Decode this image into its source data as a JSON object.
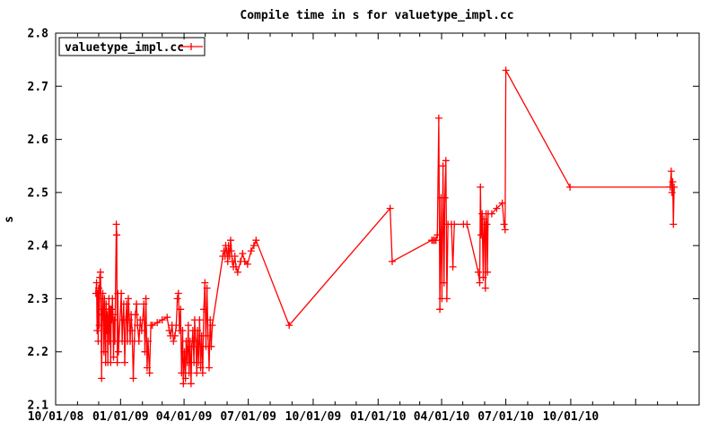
{
  "chart_data": {
    "type": "line",
    "title": "Compile time in s for valuetype_impl.cc",
    "xlabel": "",
    "ylabel": "s",
    "grid": false,
    "background_color": "#ffffff",
    "axis_color": "#000000",
    "text_color": "#000000",
    "legend": {
      "position": "top-left",
      "entries": [
        "valuetype_impl.cc"
      ]
    },
    "x_axis": {
      "unit": "days since 10/01/08",
      "range_days": [
        0,
        912
      ],
      "major_ticks": [
        {
          "day": 0,
          "label": "10/01/08"
        },
        {
          "day": 92,
          "label": "01/01/09"
        },
        {
          "day": 182,
          "label": "04/01/09"
        },
        {
          "day": 273,
          "label": "07/01/09"
        },
        {
          "day": 365,
          "label": "10/01/09"
        },
        {
          "day": 457,
          "label": "01/01/10"
        },
        {
          "day": 547,
          "label": "04/01/10"
        },
        {
          "day": 638,
          "label": "07/01/10"
        },
        {
          "day": 730,
          "label": "10/01/10"
        },
        {
          "day": 822,
          "label": ""
        }
      ],
      "minor_tick_days": [
        31,
        61,
        123,
        151,
        212,
        243,
        304,
        335,
        396,
        426,
        488,
        516,
        577,
        608,
        669,
        700,
        761,
        791,
        853,
        881
      ]
    },
    "y_axis": {
      "min": 2.1,
      "max": 2.8,
      "tick_step": 0.1,
      "tick_values": [
        2.1,
        2.2,
        2.3,
        2.4,
        2.5,
        2.6,
        2.7,
        2.8
      ]
    },
    "series": [
      {
        "name": "valuetype_impl.cc",
        "color": "#ff0000",
        "marker": "plus",
        "points": [
          [
            57,
            2.31
          ],
          [
            58,
            2.33
          ],
          [
            58.8,
            2.24
          ],
          [
            59.5,
            2.31
          ],
          [
            60.3,
            2.22
          ],
          [
            61,
            2.32
          ],
          [
            61.8,
            2.25
          ],
          [
            62.6,
            2.34
          ],
          [
            63.5,
            2.35
          ],
          [
            64.3,
            2.3
          ],
          [
            65.1,
            2.15
          ],
          [
            66,
            2.27
          ],
          [
            66.8,
            2.31
          ],
          [
            67.6,
            2.28
          ],
          [
            68.4,
            2.2
          ],
          [
            69.2,
            2.3
          ],
          [
            70,
            2.26
          ],
          [
            70.8,
            2.18
          ],
          [
            71.6,
            2.29
          ],
          [
            72.4,
            2.24
          ],
          [
            73.2,
            2.27
          ],
          [
            74,
            2.18
          ],
          [
            74.8,
            2.26
          ],
          [
            75.6,
            2.3
          ],
          [
            76.4,
            2.22
          ],
          [
            77.2,
            2.28
          ],
          [
            78,
            2.18
          ],
          [
            78.8,
            2.28
          ],
          [
            79.6,
            2.26
          ],
          [
            80.4,
            2.3
          ],
          [
            81.2,
            2.27
          ],
          [
            82,
            2.19
          ],
          [
            83,
            2.26
          ],
          [
            84,
            2.22
          ],
          [
            86,
            2.44
          ],
          [
            86.6,
            2.42
          ],
          [
            87.4,
            2.18
          ],
          [
            88.2,
            2.31
          ],
          [
            89,
            2.2
          ],
          [
            93,
            2.31
          ],
          [
            94.2,
            2.22
          ],
          [
            95.4,
            2.26
          ],
          [
            96.6,
            2.29
          ],
          [
            98,
            2.18
          ],
          [
            99.4,
            2.26
          ],
          [
            100.6,
            2.29
          ],
          [
            101.8,
            2.22
          ],
          [
            103,
            2.3
          ],
          [
            104.4,
            2.26
          ],
          [
            105.6,
            2.22
          ],
          [
            107,
            2.27
          ],
          [
            108.4,
            2.24
          ],
          [
            110,
            2.15
          ],
          [
            111.6,
            2.22
          ],
          [
            113,
            2.27
          ],
          [
            114.6,
            2.29
          ],
          [
            116,
            2.25
          ],
          [
            118,
            2.22
          ],
          [
            120,
            2.26
          ],
          [
            122,
            2.24
          ],
          [
            125,
            2.29
          ],
          [
            126.6,
            2.2
          ],
          [
            128,
            2.3
          ],
          [
            129.6,
            2.17
          ],
          [
            131,
            2.22
          ],
          [
            133,
            2.16
          ],
          [
            135,
            2.25
          ],
          [
            137,
            2.25
          ],
          [
            144,
            2.255
          ],
          [
            151,
            2.26
          ],
          [
            158,
            2.265
          ],
          [
            161,
            2.24
          ],
          [
            163,
            2.23
          ],
          [
            165,
            2.25
          ],
          [
            167,
            2.22
          ],
          [
            169,
            2.23
          ],
          [
            171,
            2.25
          ],
          [
            172.5,
            2.3
          ],
          [
            174,
            2.31
          ],
          [
            175.5,
            2.24
          ],
          [
            177,
            2.28
          ],
          [
            178.5,
            2.16
          ],
          [
            180,
            2.24
          ],
          [
            181,
            2.14
          ],
          [
            182.5,
            2.2
          ],
          [
            184,
            2.15
          ],
          [
            185,
            2.22
          ],
          [
            186.5,
            2.18
          ],
          [
            188,
            2.25
          ],
          [
            189,
            2.16
          ],
          [
            190.5,
            2.22
          ],
          [
            192,
            2.14
          ],
          [
            193,
            2.21
          ],
          [
            194.5,
            2.24
          ],
          [
            196,
            2.18
          ],
          [
            197,
            2.26
          ],
          [
            198.5,
            2.22
          ],
          [
            200,
            2.16
          ],
          [
            201,
            2.24
          ],
          [
            202.5,
            2.18
          ],
          [
            204,
            2.26
          ],
          [
            205.5,
            2.17
          ],
          [
            207,
            2.23
          ],
          [
            208.5,
            2.16
          ],
          [
            210,
            2.28
          ],
          [
            211.5,
            2.33
          ],
          [
            213,
            2.21
          ],
          [
            214.5,
            2.32
          ],
          [
            216,
            2.23
          ],
          [
            217.5,
            2.17
          ],
          [
            219,
            2.26
          ],
          [
            220.5,
            2.21
          ],
          [
            222,
            2.25
          ],
          [
            237,
            2.38
          ],
          [
            238.5,
            2.39
          ],
          [
            240,
            2.38
          ],
          [
            241,
            2.4
          ],
          [
            242.5,
            2.39
          ],
          [
            244,
            2.37
          ],
          [
            245,
            2.4
          ],
          [
            246.5,
            2.38
          ],
          [
            248,
            2.41
          ],
          [
            249,
            2.39
          ],
          [
            250.5,
            2.37
          ],
          [
            252,
            2.36
          ],
          [
            254,
            2.38
          ],
          [
            255.5,
            2.36
          ],
          [
            258,
            2.35
          ],
          [
            262,
            2.37
          ],
          [
            265,
            2.385
          ],
          [
            268,
            2.37
          ],
          [
            272,
            2.365
          ],
          [
            277,
            2.39
          ],
          [
            281,
            2.4
          ],
          [
            284,
            2.41
          ],
          [
            331,
            2.25
          ],
          [
            474,
            2.47
          ],
          [
            477,
            2.37
          ],
          [
            533,
            2.41
          ],
          [
            535,
            2.41
          ],
          [
            537,
            2.41
          ],
          [
            539,
            2.41
          ],
          [
            541,
            2.42
          ],
          [
            543,
            2.64
          ],
          [
            544.5,
            2.28
          ],
          [
            546,
            2.49
          ],
          [
            547.5,
            2.3
          ],
          [
            549,
            2.55
          ],
          [
            550.5,
            2.33
          ],
          [
            551.5,
            2.49
          ],
          [
            553,
            2.56
          ],
          [
            554.5,
            2.3
          ],
          [
            556,
            2.44
          ],
          [
            561,
            2.44
          ],
          [
            563,
            2.36
          ],
          [
            565,
            2.44
          ],
          [
            578,
            2.44
          ],
          [
            583,
            2.44
          ],
          [
            599,
            2.35
          ],
          [
            601,
            2.33
          ],
          [
            602,
            2.51
          ],
          [
            603,
            2.42
          ],
          [
            604.5,
            2.46
          ],
          [
            606,
            2.34
          ],
          [
            607,
            2.45
          ],
          [
            608,
            2.44
          ],
          [
            609,
            2.32
          ],
          [
            610,
            2.46
          ],
          [
            611,
            2.44
          ],
          [
            612,
            2.35
          ],
          [
            613,
            2.46
          ],
          [
            618,
            2.46
          ],
          [
            625,
            2.47
          ],
          [
            633,
            2.48
          ],
          [
            635.5,
            2.44
          ],
          [
            637,
            2.43
          ],
          [
            638,
            2.73
          ],
          [
            729,
            2.51
          ],
          [
            871,
            2.51
          ],
          [
            872.5,
            2.54
          ],
          [
            873.5,
            2.5
          ],
          [
            874.5,
            2.52
          ],
          [
            875.5,
            2.44
          ],
          [
            876.5,
            2.51
          ]
        ]
      }
    ]
  }
}
